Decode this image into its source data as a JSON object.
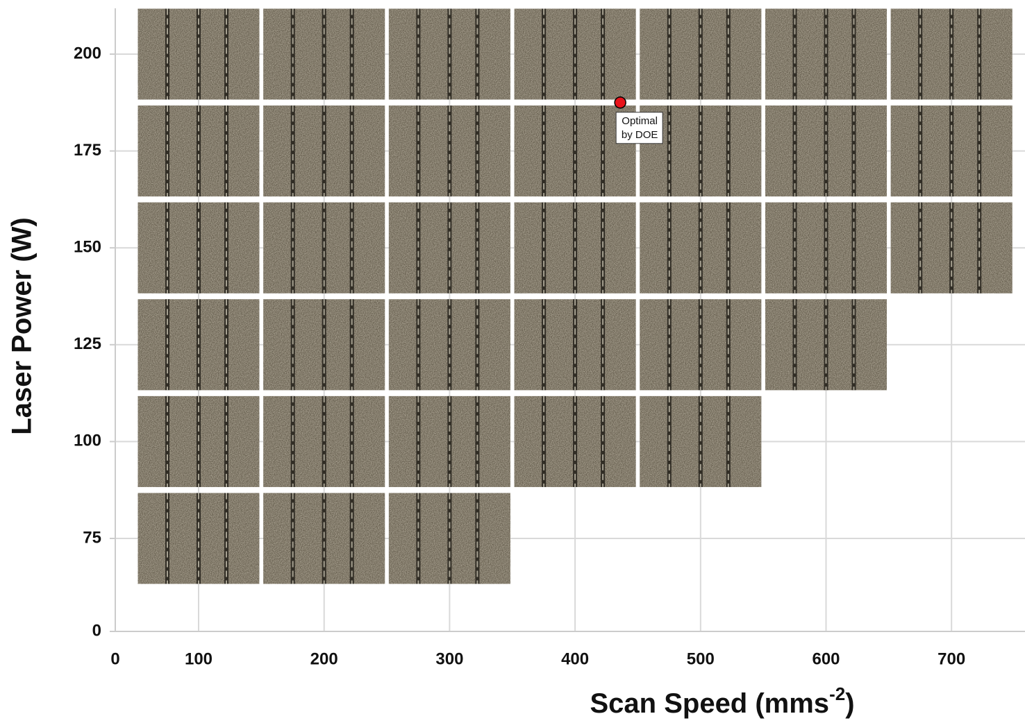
{
  "chart_data": {
    "type": "scatter",
    "x_label": [
      "Scan Speed (mms",
      "-2",
      ")"
    ],
    "y_label": "Laser Power (W)",
    "xlim": [
      0,
      800
    ],
    "xticks": [
      0,
      100,
      200,
      300,
      400,
      500,
      600,
      700
    ],
    "ylim": [
      0,
      200
    ],
    "yticks": [
      0,
      75,
      100,
      125,
      150,
      175,
      200
    ],
    "grid": true,
    "samples": {
      "x": [
        100,
        200,
        300,
        400,
        500,
        600,
        700,
        100,
        200,
        300,
        400,
        500,
        600,
        700,
        100,
        200,
        300,
        400,
        500,
        600,
        700,
        100,
        200,
        300,
        400,
        500,
        600,
        100,
        200,
        300,
        400,
        500,
        100,
        200,
        300
      ],
      "y": [
        200,
        200,
        200,
        200,
        200,
        200,
        200,
        175,
        175,
        175,
        175,
        175,
        175,
        175,
        150,
        150,
        150,
        150,
        150,
        150,
        150,
        125,
        125,
        125,
        125,
        125,
        125,
        100,
        100,
        100,
        100,
        100,
        75,
        75,
        75
      ]
    },
    "optimal": {
      "x": 436,
      "y": 187.5,
      "color": "#e8131b",
      "label": [
        "Optimal",
        "by DOE"
      ]
    }
  }
}
